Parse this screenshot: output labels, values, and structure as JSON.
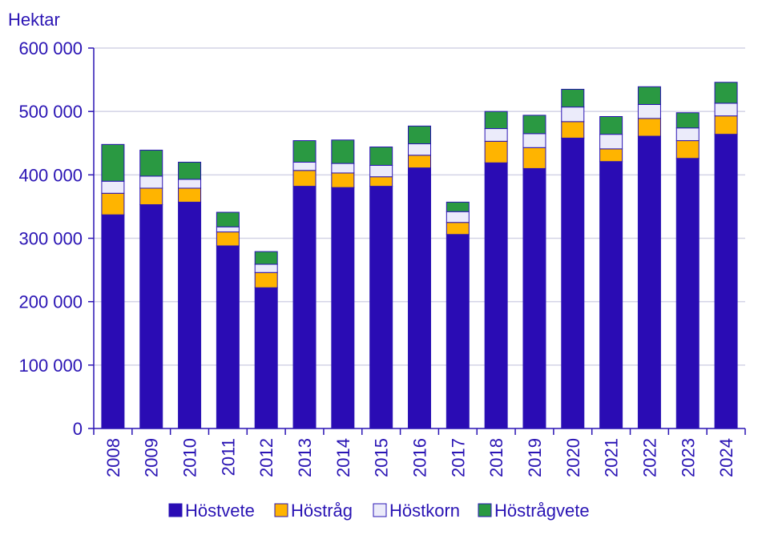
{
  "chart_data": {
    "type": "bar",
    "stacked": true,
    "unit_label": "Hektar",
    "categories": [
      "2008",
      "2009",
      "2010",
      "2011",
      "2012",
      "2013",
      "2014",
      "2015",
      "2016",
      "2017",
      "2018",
      "2019",
      "2020",
      "2021",
      "2022",
      "2023",
      "2024"
    ],
    "series": [
      {
        "name": "Höstvete",
        "color": "#2a0cb4",
        "values": [
          337000,
          353000,
          357000,
          288000,
          222000,
          382000,
          380000,
          382000,
          411000,
          306000,
          419000,
          410000,
          458000,
          421000,
          461000,
          426000,
          464000
        ]
      },
      {
        "name": "Höstråg",
        "color": "#ffb400",
        "values": [
          34000,
          26000,
          22000,
          22000,
          24000,
          25000,
          23000,
          15000,
          20000,
          19000,
          34000,
          33000,
          26000,
          20000,
          28000,
          28000,
          29000
        ]
      },
      {
        "name": "Höstkorn",
        "color": "#ebebfa",
        "values": [
          19000,
          19000,
          14000,
          8000,
          13000,
          13000,
          15000,
          18000,
          18000,
          17000,
          20000,
          22000,
          23000,
          23000,
          22000,
          20000,
          20000
        ]
      },
      {
        "name": "Höstrågvete",
        "color": "#2a9942",
        "values": [
          58000,
          41000,
          27000,
          23000,
          20000,
          34000,
          37000,
          29000,
          28000,
          15000,
          27000,
          29000,
          28000,
          28000,
          28000,
          24000,
          33000
        ]
      }
    ],
    "ylim": [
      0,
      600000
    ],
    "yticks": [
      0,
      100000,
      200000,
      300000,
      400000,
      500000,
      600000
    ],
    "ytick_labels": [
      "0",
      "100 000",
      "200 000",
      "300 000",
      "400 000",
      "500 000",
      "600 000"
    ],
    "grid": true,
    "legend_position": "bottom",
    "colors": {
      "axis": "#2a14b4",
      "grid": "#d3d3e6",
      "text": "#2a14b4",
      "bar_outline": "#2a14b4"
    }
  }
}
